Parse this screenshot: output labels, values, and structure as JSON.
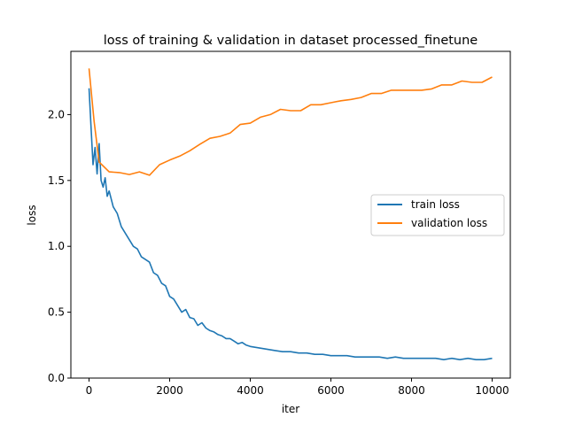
{
  "chart_data": {
    "type": "line",
    "title": "loss of training & validation in dataset processed_finetune",
    "xlabel": "iter",
    "ylabel": "loss",
    "xlim": [
      -450,
      10450
    ],
    "ylim": [
      0.0,
      2.48
    ],
    "x_ticks": [
      0,
      2000,
      4000,
      6000,
      8000,
      10000
    ],
    "x_tick_labels": [
      "0",
      "2000",
      "4000",
      "6000",
      "8000",
      "10000"
    ],
    "y_ticks": [
      0.0,
      0.5,
      1.0,
      1.5,
      2.0
    ],
    "y_tick_labels": [
      "0.0",
      "0.5",
      "1.0",
      "1.5",
      "2.0"
    ],
    "grid": false,
    "legend_position": "center-right",
    "series": [
      {
        "name": "train loss",
        "color": "#1f77b4",
        "x": [
          0,
          50,
          100,
          150,
          200,
          250,
          300,
          350,
          400,
          450,
          500,
          600,
          700,
          800,
          900,
          1000,
          1100,
          1200,
          1300,
          1400,
          1500,
          1600,
          1700,
          1800,
          1900,
          2000,
          2100,
          2200,
          2300,
          2400,
          2500,
          2600,
          2700,
          2800,
          2900,
          3000,
          3100,
          3200,
          3300,
          3400,
          3500,
          3600,
          3700,
          3800,
          3900,
          4000,
          4200,
          4400,
          4600,
          4800,
          5000,
          5200,
          5400,
          5600,
          5800,
          6000,
          6200,
          6400,
          6600,
          6800,
          7000,
          7200,
          7400,
          7600,
          7800,
          8000,
          8200,
          8400,
          8600,
          8800,
          9000,
          9200,
          9400,
          9600,
          9800,
          10000
        ],
        "values": [
          2.2,
          1.9,
          1.62,
          1.75,
          1.55,
          1.78,
          1.5,
          1.45,
          1.52,
          1.38,
          1.42,
          1.3,
          1.25,
          1.15,
          1.1,
          1.05,
          1.0,
          0.98,
          0.92,
          0.9,
          0.88,
          0.8,
          0.78,
          0.72,
          0.7,
          0.62,
          0.6,
          0.55,
          0.5,
          0.52,
          0.46,
          0.45,
          0.4,
          0.42,
          0.38,
          0.36,
          0.35,
          0.33,
          0.32,
          0.3,
          0.3,
          0.28,
          0.26,
          0.27,
          0.25,
          0.24,
          0.23,
          0.22,
          0.21,
          0.2,
          0.2,
          0.19,
          0.19,
          0.18,
          0.18,
          0.17,
          0.17,
          0.17,
          0.16,
          0.16,
          0.16,
          0.16,
          0.15,
          0.16,
          0.15,
          0.15,
          0.15,
          0.15,
          0.15,
          0.14,
          0.15,
          0.14,
          0.15,
          0.14,
          0.14,
          0.15
        ]
      },
      {
        "name": "validation loss",
        "color": "#ff7f0e",
        "x": [
          0,
          125,
          250,
          500,
          750,
          1000,
          1250,
          1500,
          1750,
          2000,
          2250,
          2500,
          2750,
          3000,
          3250,
          3500,
          3750,
          4000,
          4250,
          4500,
          4750,
          5000,
          5250,
          5500,
          5750,
          6000,
          6250,
          6500,
          6750,
          7000,
          7250,
          7500,
          7750,
          8000,
          8250,
          8500,
          8750,
          9000,
          9250,
          9500,
          9750,
          10000
        ],
        "values": [
          2.35,
          1.95,
          1.64,
          1.565,
          1.56,
          1.545,
          1.565,
          1.54,
          1.62,
          1.655,
          1.685,
          1.725,
          1.775,
          1.82,
          1.835,
          1.86,
          1.925,
          1.935,
          1.98,
          2.0,
          2.04,
          2.03,
          2.03,
          2.075,
          2.075,
          2.09,
          2.105,
          2.115,
          2.13,
          2.16,
          2.16,
          2.185,
          2.185,
          2.185,
          2.185,
          2.195,
          2.225,
          2.225,
          2.255,
          2.245,
          2.245,
          2.285
        ]
      }
    ]
  }
}
